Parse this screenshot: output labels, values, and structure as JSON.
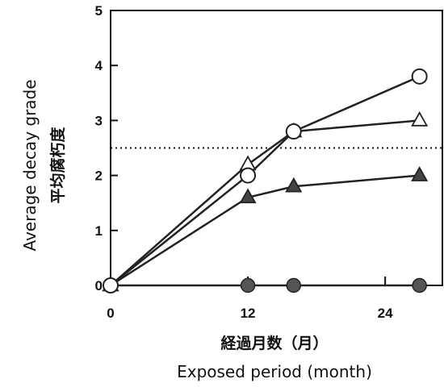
{
  "chart_data": {
    "type": "line",
    "title": "",
    "xlabel": "Exposed period (month)",
    "xlabel_jp": "経過月数（月）",
    "ylabel": "Average decay grade",
    "ylabel_jp": "平均腐朽度",
    "xlim": [
      0,
      29
    ],
    "ylim": [
      0,
      5
    ],
    "xticks": [
      0,
      12,
      24
    ],
    "yticks": [
      0,
      1,
      2,
      3,
      4,
      5
    ],
    "grid": false,
    "reference_line": {
      "y": 2.5,
      "style": "dotted"
    },
    "series": [
      {
        "marker": "open-circle",
        "x": [
          0,
          12,
          16,
          27
        ],
        "y": [
          0,
          2.0,
          2.8,
          3.8
        ]
      },
      {
        "marker": "open-triangle",
        "x": [
          0,
          12,
          16,
          27
        ],
        "y": [
          0,
          2.2,
          2.8,
          3.0
        ]
      },
      {
        "marker": "filled-triangle",
        "x": [
          0,
          12,
          16,
          27
        ],
        "y": [
          0,
          1.6,
          1.8,
          2.0
        ]
      },
      {
        "marker": "filled-circle",
        "x": [
          0,
          12,
          16,
          27
        ],
        "y": [
          0,
          0,
          0,
          0
        ]
      }
    ]
  }
}
